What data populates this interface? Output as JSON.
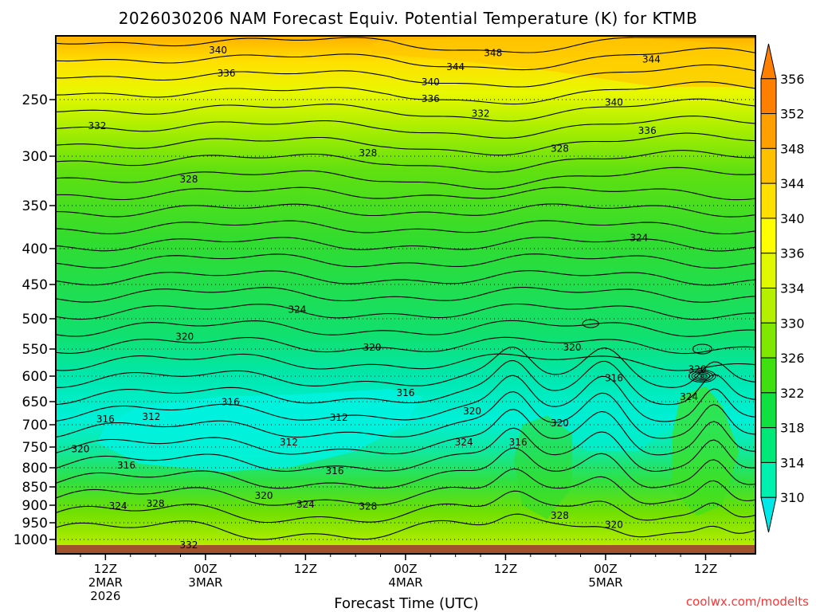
{
  "chart_data": {
    "type": "contour",
    "title": "2026030206 NAM Forecast Equiv. Potential Temperature (K) for KTMB",
    "xlabel": "Forecast Time (UTC)",
    "credit": "coolwx.com/modelts",
    "y_ticks": [
      250,
      300,
      350,
      400,
      450,
      500,
      550,
      600,
      650,
      700,
      750,
      800,
      850,
      900,
      950,
      1000
    ],
    "x_ticks": [
      {
        "hour": 6,
        "lines": [
          "12Z",
          "2MAR",
          "2026"
        ]
      },
      {
        "hour": 18,
        "lines": [
          "00Z",
          "3MAR"
        ]
      },
      {
        "hour": 30,
        "lines": [
          "12Z"
        ]
      },
      {
        "hour": 42,
        "lines": [
          "00Z",
          "4MAR"
        ]
      },
      {
        "hour": 54,
        "lines": [
          "12Z"
        ]
      },
      {
        "hour": 66,
        "lines": [
          "00Z",
          "5MAR"
        ]
      },
      {
        "hour": 78,
        "lines": [
          "12Z"
        ]
      }
    ],
    "x_range_hours": [
      0,
      84
    ],
    "y_range_hPa": [
      200,
      1025
    ],
    "colorbar": {
      "levels": [
        310,
        314,
        318,
        322,
        326,
        330,
        334,
        336,
        340,
        344,
        348,
        352,
        356
      ],
      "colors": [
        "#00e8e8",
        "#00f0b0",
        "#00e878",
        "#10e040",
        "#40e010",
        "#80e800",
        "#b4f000",
        "#e0f800",
        "#ffff00",
        "#ffe000",
        "#ffc000",
        "#ffa000",
        "#ff8000"
      ]
    },
    "profile": {
      "pressure": [
        200,
        250,
        300,
        350,
        400,
        450,
        500,
        550,
        600,
        650,
        700,
        750,
        800,
        850,
        900,
        950,
        1000
      ],
      "theta_e_approx": [
        346,
        336,
        330,
        327,
        325,
        324,
        323,
        321,
        319,
        317,
        314,
        313,
        316,
        320,
        325,
        330,
        334
      ]
    },
    "contour_labels": [
      {
        "text": "340",
        "hour": 19.5,
        "p": 211
      },
      {
        "text": "336",
        "hour": 20.5,
        "p": 229
      },
      {
        "text": "348",
        "hour": 52.5,
        "p": 213
      },
      {
        "text": "344",
        "hour": 48,
        "p": 224
      },
      {
        "text": "344",
        "hour": 71.5,
        "p": 218
      },
      {
        "text": "340",
        "hour": 45,
        "p": 236
      },
      {
        "text": "336",
        "hour": 45,
        "p": 249
      },
      {
        "text": "340",
        "hour": 67,
        "p": 252
      },
      {
        "text": "332",
        "hour": 5,
        "p": 273
      },
      {
        "text": "332",
        "hour": 51,
        "p": 262
      },
      {
        "text": "336",
        "hour": 71,
        "p": 277
      },
      {
        "text": "328",
        "hour": 37.5,
        "p": 297
      },
      {
        "text": "328",
        "hour": 60.5,
        "p": 293
      },
      {
        "text": "328",
        "hour": 16,
        "p": 323
      },
      {
        "text": "324",
        "hour": 70,
        "p": 387
      },
      {
        "text": "324",
        "hour": 29,
        "p": 486
      },
      {
        "text": "320",
        "hour": 15.5,
        "p": 529
      },
      {
        "text": "320",
        "hour": 38,
        "p": 547
      },
      {
        "text": "320",
        "hour": 62,
        "p": 547
      },
      {
        "text": "320",
        "hour": 77,
        "p": 587
      },
      {
        "text": "316",
        "hour": 42,
        "p": 632
      },
      {
        "text": "316",
        "hour": 67,
        "p": 603
      },
      {
        "text": "316",
        "hour": 21,
        "p": 650
      },
      {
        "text": "316",
        "hour": 6,
        "p": 687
      },
      {
        "text": "312",
        "hour": 11.5,
        "p": 682
      },
      {
        "text": "312",
        "hour": 34,
        "p": 684
      },
      {
        "text": "312",
        "hour": 28,
        "p": 738
      },
      {
        "text": "320",
        "hour": 50,
        "p": 670
      },
      {
        "text": "324",
        "hour": 76,
        "p": 640
      },
      {
        "text": "320",
        "hour": 60.5,
        "p": 696
      },
      {
        "text": "324",
        "hour": 49,
        "p": 738
      },
      {
        "text": "316",
        "hour": 55.5,
        "p": 738
      },
      {
        "text": "320",
        "hour": 3,
        "p": 754
      },
      {
        "text": "316",
        "hour": 8.5,
        "p": 793
      },
      {
        "text": "316",
        "hour": 33.5,
        "p": 807
      },
      {
        "text": "320",
        "hour": 25,
        "p": 873
      },
      {
        "text": "324",
        "hour": 30,
        "p": 897
      },
      {
        "text": "324",
        "hour": 7.5,
        "p": 901
      },
      {
        "text": "328",
        "hour": 12,
        "p": 895
      },
      {
        "text": "328",
        "hour": 37.5,
        "p": 902
      },
      {
        "text": "328",
        "hour": 60.5,
        "p": 928
      },
      {
        "text": "320",
        "hour": 67,
        "p": 955
      },
      {
        "text": "332",
        "hour": 16,
        "p": 1009
      }
    ]
  }
}
